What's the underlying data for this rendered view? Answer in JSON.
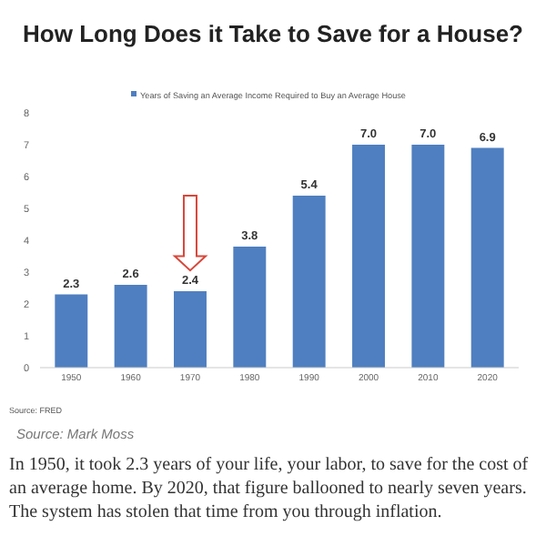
{
  "chart_data": {
    "type": "bar",
    "title": "How Long Does it Take to Save for a House?",
    "categories": [
      "1950",
      "1960",
      "1970",
      "1980",
      "1990",
      "2000",
      "2010",
      "2020"
    ],
    "series": [
      {
        "name": "Years of Saving an Average Income Required to Buy an Average House",
        "color": "#4f7fc0",
        "values": [
          2.3,
          2.6,
          2.4,
          3.8,
          5.4,
          7.0,
          7.0,
          6.9
        ]
      }
    ],
    "value_labels": [
      "2.3",
      "2.6",
      "2.4",
      "3.8",
      "5.4",
      "7.0",
      "7.0",
      "6.9"
    ],
    "ylim": [
      0,
      8
    ],
    "yticks": [
      0,
      1,
      2,
      3,
      4,
      5,
      6,
      7,
      8
    ],
    "grid": false,
    "legend": "top",
    "annotations": [
      "Source: FRED",
      "Source: Mark Moss",
      "In 1950, it took 2.3 years of your life, your labor, to save for the cost of an average home. By 2020, that figure ballooned to nearly seven years. The system has stolen that time from you through inflation."
    ]
  }
}
